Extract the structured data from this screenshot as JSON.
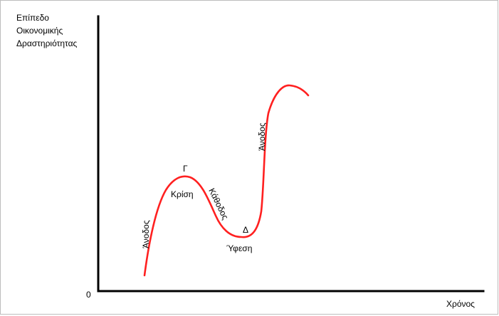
{
  "ylabel": [
    "Επίπεδο",
    "Οικονομικής",
    "Δραστηριότητας"
  ],
  "xlabel": "Χρόνος",
  "origin": "0",
  "labels": {
    "rise_first": "Άνοδος",
    "peak_letter": "Γ",
    "crisis": "Κρίση",
    "descent": "Κάθοδος",
    "trough_letter": "Δ",
    "recession": "Ύφεση",
    "rise_second": "Άνοδος"
  },
  "colors": {
    "curve": "#ff2020",
    "axis": "#000000",
    "border": "#bdbdbd"
  }
}
